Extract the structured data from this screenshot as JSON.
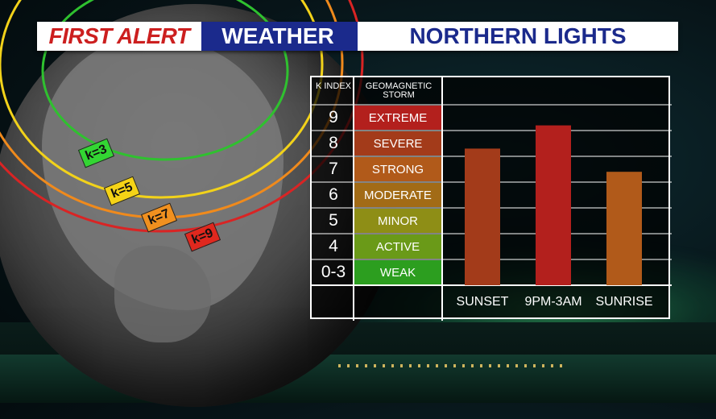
{
  "banner": {
    "first_alert": "FIRST ALERT",
    "weather": "WEATHER",
    "topic": "NORTHERN LIGHTS"
  },
  "map": {
    "rings": [
      {
        "label": "k=3",
        "color": "#2fc12f",
        "box_color": "#33d633"
      },
      {
        "label": "k=5",
        "color": "#f2d21a",
        "box_color": "#f5d316"
      },
      {
        "label": "k=7",
        "color": "#f08a1c",
        "box_color": "#f0901f"
      },
      {
        "label": "k=9",
        "color": "#d92424",
        "box_color": "#e0281e"
      }
    ]
  },
  "table": {
    "header_k": "K INDEX",
    "header_storm": "GEOMAGNETIC STORM",
    "rows": [
      {
        "k": "9",
        "storm": "EXTREME",
        "color": "#b3201d"
      },
      {
        "k": "8",
        "storm": "SEVERE",
        "color": "#a33b1a"
      },
      {
        "k": "7",
        "storm": "STRONG",
        "color": "#b15a1a"
      },
      {
        "k": "6",
        "storm": "MODERATE",
        "color": "#a26b16"
      },
      {
        "k": "5",
        "storm": "MINOR",
        "color": "#8e8e16"
      },
      {
        "k": "4",
        "storm": "ACTIVE",
        "color": "#6a9a18"
      },
      {
        "k": "0-3",
        "storm": "WEAK",
        "color": "#2c9e1f"
      }
    ]
  },
  "chart_data": {
    "type": "bar",
    "categories": [
      "SUNSET",
      "9PM-3AM",
      "SUNRISE"
    ],
    "values": [
      7.8,
      8.7,
      6.9
    ],
    "colors": [
      "#a33b1a",
      "#b3201d",
      "#b15a1a"
    ],
    "ylim": [
      2.5,
      9.5
    ],
    "ylabel": "K INDEX"
  }
}
